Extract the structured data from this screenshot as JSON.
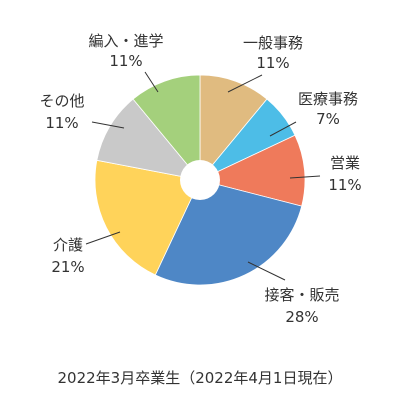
{
  "chart_data": {
    "type": "pie",
    "donut": true,
    "slices": [
      {
        "name": "一般事務",
        "value": 11,
        "label": "11%",
        "color": "#e0bb80"
      },
      {
        "name": "医療事務",
        "value": 7,
        "label": "7%",
        "color": "#4dbde7"
      },
      {
        "name": "営業",
        "value": 11,
        "label": "11%",
        "color": "#ef7a5b"
      },
      {
        "name": "接客・販売",
        "value": 28,
        "label": "28%",
        "color": "#4e87c6"
      },
      {
        "name": "介護",
        "value": 21,
        "label": "21%",
        "color": "#ffd35a"
      },
      {
        "name": "その他",
        "value": 11,
        "label": "11%",
        "color": "#c9c9c9"
      },
      {
        "name": "編入・進学",
        "value": 11,
        "label": "11%",
        "color": "#a4d07c"
      }
    ],
    "start_angle_deg": 0,
    "direction": "clockwise"
  },
  "caption": "2022年3月卒業生（2022年4月1日現在）"
}
